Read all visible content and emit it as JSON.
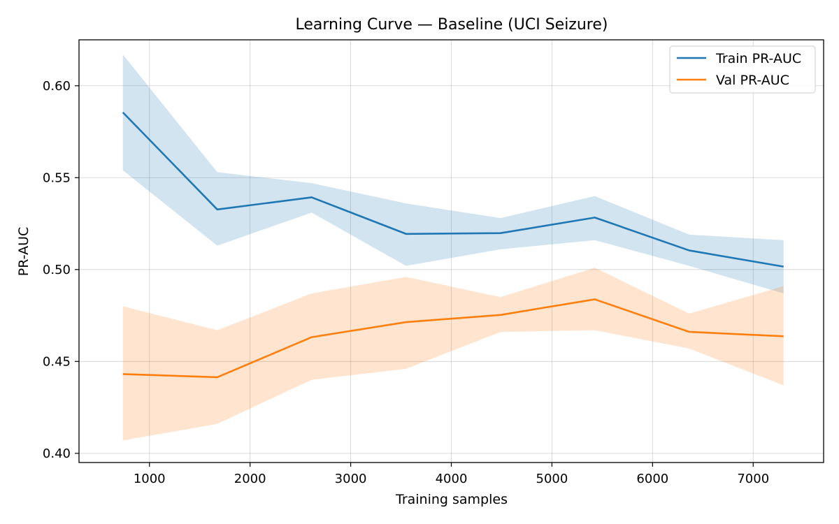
{
  "chart_data": {
    "type": "line",
    "title": "Learning Curve — Baseline (UCI Seizure)",
    "xlabel": "Training samples",
    "ylabel": "PR-AUC",
    "xlim": [
      300,
      7700
    ],
    "ylim": [
      0.395,
      0.625
    ],
    "xticks": [
      1000,
      2000,
      3000,
      4000,
      5000,
      6000,
      7000
    ],
    "yticks": [
      0.4,
      0.45,
      0.5,
      0.55,
      0.6
    ],
    "ytick_labels": [
      "0.40",
      "0.45",
      "0.50",
      "0.55",
      "0.60"
    ],
    "grid": true,
    "legend_position": "upper right",
    "x": [
      736,
      1674,
      2612,
      3550,
      4488,
      5426,
      6364,
      7302
    ],
    "series": [
      {
        "name": "Train PR-AUC",
        "color": "#1f77b4",
        "values": [
          0.5855,
          0.5327,
          0.5393,
          0.5194,
          0.5198,
          0.5283,
          0.5104,
          0.5016
        ],
        "band_lower": [
          0.554,
          0.513,
          0.531,
          0.502,
          0.511,
          0.516,
          0.502,
          0.487
        ],
        "band_upper": [
          0.617,
          0.553,
          0.547,
          0.536,
          0.528,
          0.54,
          0.519,
          0.516
        ]
      },
      {
        "name": "Val PR-AUC",
        "color": "#ff7f0e",
        "values": [
          0.4431,
          0.4414,
          0.4632,
          0.4714,
          0.4753,
          0.4838,
          0.4661,
          0.4637
        ],
        "band_lower": [
          0.407,
          0.416,
          0.44,
          0.446,
          0.466,
          0.467,
          0.457,
          0.437
        ],
        "band_upper": [
          0.48,
          0.467,
          0.487,
          0.496,
          0.485,
          0.501,
          0.476,
          0.491
        ]
      }
    ]
  }
}
